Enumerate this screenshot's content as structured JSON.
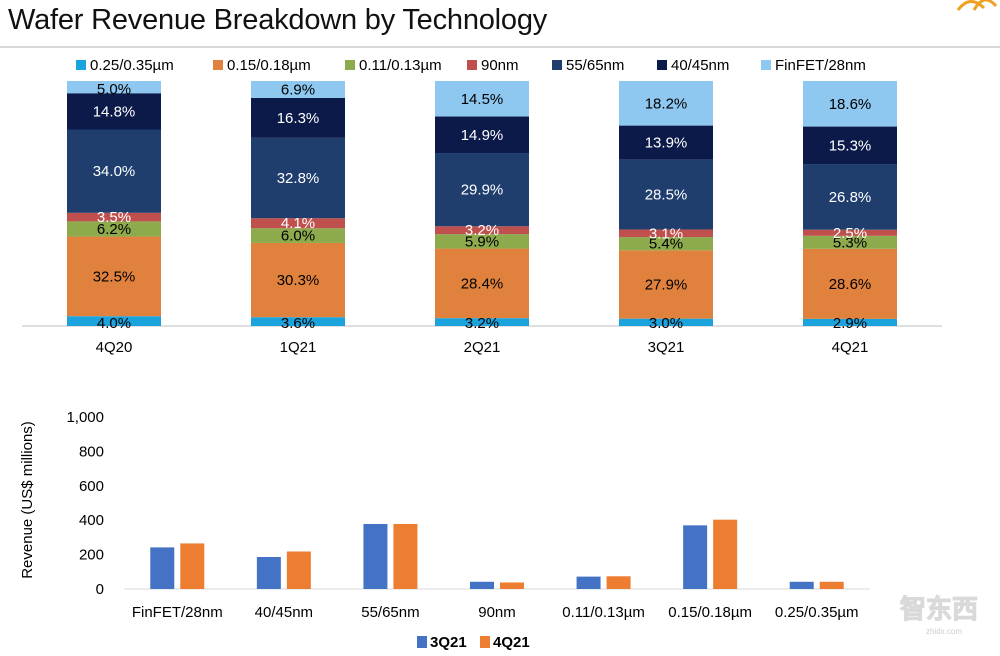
{
  "page": {
    "title": "Wafer Revenue Breakdown by Technology",
    "watermark_text": "智东西",
    "watermark_sub": "zhidx.com"
  },
  "colors": {
    "tech": [
      "#1aa3dc",
      "#e0823d",
      "#8daa4d",
      "#c0504d",
      "#1f3e6e",
      "#0c1a4a",
      "#8ec7ef"
    ],
    "series": [
      "#4472c4",
      "#ed7d31"
    ],
    "logo": "#f0a020"
  },
  "chart_data": [
    {
      "type": "bar",
      "stacked": true,
      "title": "Wafer Revenue Breakdown by Technology",
      "unit": "%",
      "categories": [
        "4Q20",
        "1Q21",
        "2Q21",
        "3Q21",
        "4Q21"
      ],
      "legend_position": "top",
      "series": [
        {
          "name": "0.25/0.35µm",
          "values": [
            4.0,
            3.6,
            3.2,
            3.0,
            2.9
          ]
        },
        {
          "name": "0.15/0.18µm",
          "values": [
            32.5,
            30.3,
            28.4,
            27.9,
            28.6
          ]
        },
        {
          "name": "0.11/0.13µm",
          "values": [
            6.2,
            6.0,
            5.9,
            5.4,
            5.3
          ]
        },
        {
          "name": "90nm",
          "values": [
            3.5,
            4.1,
            3.2,
            3.1,
            2.5
          ]
        },
        {
          "name": "55/65nm",
          "values": [
            34.0,
            32.8,
            29.9,
            28.5,
            26.8
          ]
        },
        {
          "name": "40/45nm",
          "values": [
            14.8,
            16.3,
            14.9,
            13.9,
            15.3
          ]
        },
        {
          "name": "FinFET/28nm",
          "values": [
            5.0,
            6.9,
            14.5,
            18.2,
            18.6
          ]
        }
      ],
      "ylim": [
        0,
        100
      ],
      "grid": false
    },
    {
      "type": "bar",
      "stacked": false,
      "title": "",
      "xlabel": "",
      "ylabel": "Revenue (US$  millions)",
      "categories": [
        "FinFET/28nm",
        "40/45nm",
        "55/65nm",
        "90nm",
        "0.11/0.13µm",
        "0.15/0.18µm",
        "0.25/0.35µm"
      ],
      "series": [
        {
          "name": "3Q21",
          "values": [
            242,
            186,
            378,
            42,
            72,
            370,
            42
          ]
        },
        {
          "name": "4Q21",
          "values": [
            265,
            218,
            378,
            38,
            74,
            403,
            42
          ]
        }
      ],
      "ylim": [
        0,
        1000
      ],
      "yticks": [
        0,
        200,
        400,
        600,
        800,
        1000
      ],
      "ytick_labels": [
        "0",
        "200",
        "400",
        "600",
        "800",
        "1,000"
      ],
      "grid": false,
      "legend_position": "bottom"
    }
  ]
}
